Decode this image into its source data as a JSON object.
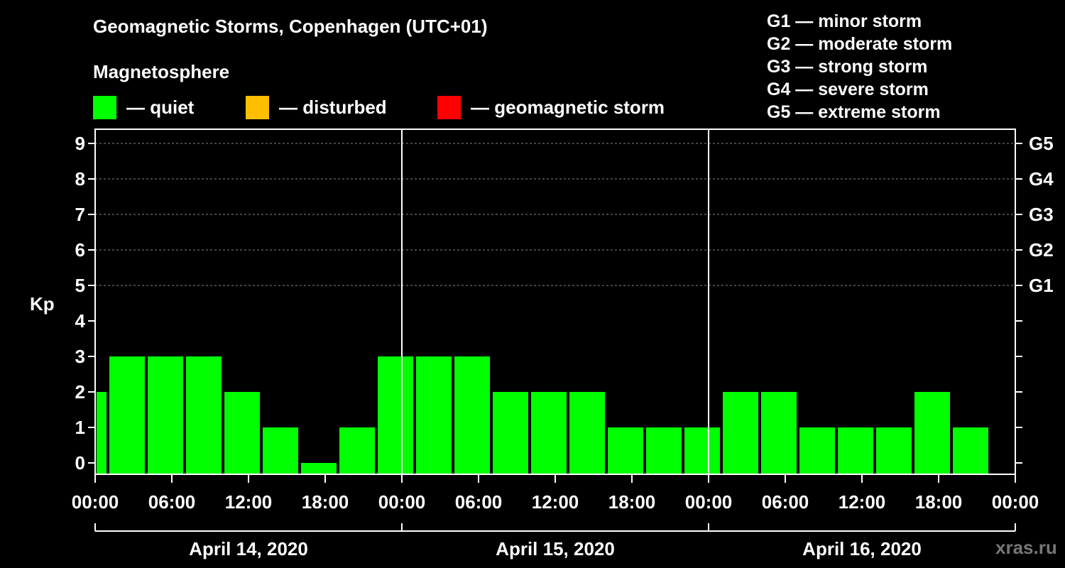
{
  "title": "Geomagnetic Storms, Copenhagen (UTC+01)",
  "magnetosphere": {
    "title": "Magnetosphere",
    "legend": [
      {
        "color": "#00ff00",
        "label": "— quiet"
      },
      {
        "color": "#ffbf00",
        "label": "— disturbed"
      },
      {
        "color": "#ff0000",
        "label": "— geomagnetic storm"
      }
    ]
  },
  "storm_scale": [
    "G1 — minor storm",
    "G2 — moderate storm",
    "G3 — strong storm",
    "G4 — severe storm",
    "G5 — extreme storm"
  ],
  "watermark": "xras.ru",
  "chart_data": {
    "type": "bar",
    "ylabel": "Kp",
    "ylim": [
      0,
      9
    ],
    "yticks": [
      0,
      1,
      2,
      3,
      4,
      5,
      6,
      7,
      8,
      9
    ],
    "right_ticks": [
      {
        "kp": 5,
        "label": "G1"
      },
      {
        "kp": 6,
        "label": "G2"
      },
      {
        "kp": 7,
        "label": "G3"
      },
      {
        "kp": 8,
        "label": "G4"
      },
      {
        "kp": 9,
        "label": "G5"
      }
    ],
    "xlim_hours": [
      0,
      72
    ],
    "xticks": [
      {
        "h": 0,
        "label": "00:00"
      },
      {
        "h": 6,
        "label": "06:00"
      },
      {
        "h": 12,
        "label": "12:00"
      },
      {
        "h": 18,
        "label": "18:00"
      },
      {
        "h": 24,
        "label": "00:00"
      },
      {
        "h": 30,
        "label": "06:00"
      },
      {
        "h": 36,
        "label": "12:00"
      },
      {
        "h": 42,
        "label": "18:00"
      },
      {
        "h": 48,
        "label": "00:00"
      },
      {
        "h": 54,
        "label": "06:00"
      },
      {
        "h": 60,
        "label": "12:00"
      },
      {
        "h": 66,
        "label": "18:00"
      },
      {
        "h": 72,
        "label": "00:00"
      }
    ],
    "days": [
      {
        "label": "April 14, 2020",
        "start_h": 0,
        "end_h": 24
      },
      {
        "label": "April 15, 2020",
        "start_h": 24,
        "end_h": 48
      },
      {
        "label": "April 16, 2020",
        "start_h": 48,
        "end_h": 72
      }
    ],
    "bars": [
      {
        "start_h": 0,
        "end_h": 1,
        "kp": 2,
        "status": "quiet"
      },
      {
        "start_h": 1,
        "end_h": 4,
        "kp": 3,
        "status": "quiet"
      },
      {
        "start_h": 4,
        "end_h": 7,
        "kp": 3,
        "status": "quiet"
      },
      {
        "start_h": 7,
        "end_h": 10,
        "kp": 3,
        "status": "quiet"
      },
      {
        "start_h": 10,
        "end_h": 13,
        "kp": 2,
        "status": "quiet"
      },
      {
        "start_h": 13,
        "end_h": 16,
        "kp": 1,
        "status": "quiet"
      },
      {
        "start_h": 16,
        "end_h": 19,
        "kp": 0,
        "status": "quiet"
      },
      {
        "start_h": 19,
        "end_h": 22,
        "kp": 1,
        "status": "quiet"
      },
      {
        "start_h": 22,
        "end_h": 25,
        "kp": 3,
        "status": "quiet"
      },
      {
        "start_h": 25,
        "end_h": 28,
        "kp": 3,
        "status": "quiet"
      },
      {
        "start_h": 28,
        "end_h": 31,
        "kp": 3,
        "status": "quiet"
      },
      {
        "start_h": 31,
        "end_h": 34,
        "kp": 2,
        "status": "quiet"
      },
      {
        "start_h": 34,
        "end_h": 37,
        "kp": 2,
        "status": "quiet"
      },
      {
        "start_h": 37,
        "end_h": 40,
        "kp": 2,
        "status": "quiet"
      },
      {
        "start_h": 40,
        "end_h": 43,
        "kp": 1,
        "status": "quiet"
      },
      {
        "start_h": 43,
        "end_h": 46,
        "kp": 1,
        "status": "quiet"
      },
      {
        "start_h": 46,
        "end_h": 49,
        "kp": 1,
        "status": "quiet"
      },
      {
        "start_h": 49,
        "end_h": 52,
        "kp": 2,
        "status": "quiet"
      },
      {
        "start_h": 52,
        "end_h": 55,
        "kp": 2,
        "status": "quiet"
      },
      {
        "start_h": 55,
        "end_h": 58,
        "kp": 1,
        "status": "quiet"
      },
      {
        "start_h": 58,
        "end_h": 61,
        "kp": 1,
        "status": "quiet"
      },
      {
        "start_h": 61,
        "end_h": 64,
        "kp": 1,
        "status": "quiet"
      },
      {
        "start_h": 64,
        "end_h": 67,
        "kp": 2,
        "status": "quiet"
      },
      {
        "start_h": 67,
        "end_h": 70,
        "kp": 1,
        "status": "quiet"
      }
    ],
    "status_colors": {
      "quiet": "#00ff00",
      "disturbed": "#ffbf00",
      "storm": "#ff0000"
    }
  }
}
